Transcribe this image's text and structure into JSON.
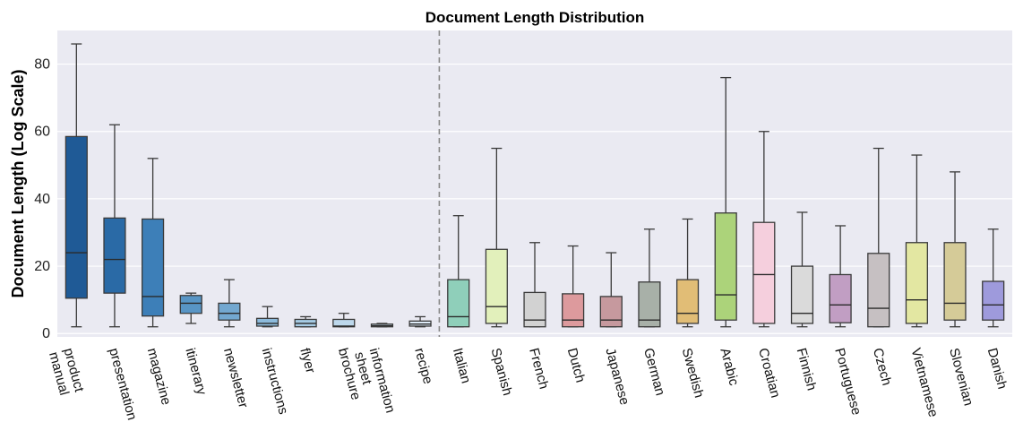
{
  "chart_data": {
    "type": "box",
    "title": "Document Length Distribution",
    "ylabel": "Document Length (Log Scale)",
    "xlabel": "",
    "ylim": [
      -1,
      90
    ],
    "yticks": [
      0,
      20,
      40,
      60,
      80
    ],
    "grid": true,
    "divider_after_index": 9,
    "categories": [
      {
        "label": [
          "product",
          "manual"
        ],
        "color": "#1f5a96",
        "min": 2,
        "q1": 10.5,
        "median": 24,
        "q3": 58.5,
        "max": 86
      },
      {
        "label": [
          "presentation"
        ],
        "color": "#2a6aa6",
        "min": 2,
        "q1": 12,
        "median": 22,
        "q3": 34.3,
        "max": 62
      },
      {
        "label": [
          "magazine"
        ],
        "color": "#3d7fb8",
        "min": 2,
        "q1": 5.2,
        "median": 11,
        "q3": 34,
        "max": 52
      },
      {
        "label": [
          "itinerary"
        ],
        "color": "#5895c5",
        "min": 3,
        "q1": 6,
        "median": 9,
        "q3": 11.3,
        "max": 12
      },
      {
        "label": [
          "newsletter"
        ],
        "color": "#73a8d0",
        "min": 2,
        "q1": 4,
        "median": 6,
        "q3": 9,
        "max": 16
      },
      {
        "label": [
          "instructions"
        ],
        "color": "#8cbadb",
        "min": 2,
        "q1": 2.2,
        "median": 3,
        "q3": 4.5,
        "max": 8
      },
      {
        "label": [
          "flyer"
        ],
        "color": "#a6cbe4",
        "min": 2,
        "q1": 2,
        "median": 3,
        "q3": 4.2,
        "max": 5
      },
      {
        "label": [
          "brochure"
        ],
        "color": "#bdd8ec",
        "min": 2,
        "q1": 2,
        "median": 2.2,
        "q3": 4.2,
        "max": 6
      },
      {
        "label": [
          "information",
          "sheet"
        ],
        "color": "#cfe2f2",
        "min": 2,
        "q1": 2,
        "median": 2.3,
        "q3": 2.8,
        "max": 3
      },
      {
        "label": [
          "recipe"
        ],
        "color": "#deebf7",
        "min": 2,
        "q1": 2.2,
        "median": 2.8,
        "q3": 3.7,
        "max": 5
      },
      {
        "label": [
          "Italian"
        ],
        "color": "#8fcfba",
        "min": 2,
        "q1": 2,
        "median": 5,
        "q3": 16,
        "max": 35
      },
      {
        "label": [
          "Spanish"
        ],
        "color": "#e2f0bb",
        "min": 2,
        "q1": 3,
        "median": 8,
        "q3": 25,
        "max": 55
      },
      {
        "label": [
          "French"
        ],
        "color": "#d2d2d2",
        "min": 2,
        "q1": 2,
        "median": 4,
        "q3": 12.2,
        "max": 27
      },
      {
        "label": [
          "Dutch"
        ],
        "color": "#dd9a9d",
        "min": 2,
        "q1": 2,
        "median": 4,
        "q3": 11.8,
        "max": 26
      },
      {
        "label": [
          "Japanese"
        ],
        "color": "#c6999e",
        "min": 2,
        "q1": 2,
        "median": 4,
        "q3": 11,
        "max": 24
      },
      {
        "label": [
          "German"
        ],
        "color": "#a8b0a8",
        "min": 2,
        "q1": 2,
        "median": 4,
        "q3": 15.3,
        "max": 31
      },
      {
        "label": [
          "Swedish"
        ],
        "color": "#e1bd76",
        "min": 2,
        "q1": 3,
        "median": 6,
        "q3": 16,
        "max": 34
      },
      {
        "label": [
          "Arabic"
        ],
        "color": "#acd37a",
        "min": 2,
        "q1": 4,
        "median": 11.5,
        "q3": 35.8,
        "max": 76
      },
      {
        "label": [
          "Croatian"
        ],
        "color": "#f5cfdd",
        "min": 2,
        "q1": 3,
        "median": 17.5,
        "q3": 33,
        "max": 60
      },
      {
        "label": [
          "Finnish"
        ],
        "color": "#dadada",
        "min": 2,
        "q1": 3,
        "median": 6,
        "q3": 20,
        "max": 36
      },
      {
        "label": [
          "Portuguese"
        ],
        "color": "#c19ec3",
        "min": 2,
        "q1": 3.2,
        "median": 8.5,
        "q3": 17.5,
        "max": 32
      },
      {
        "label": [
          "Czech"
        ],
        "color": "#c6c0c2",
        "min": 2,
        "q1": 2,
        "median": 7.5,
        "q3": 23.8,
        "max": 55
      },
      {
        "label": [
          "Vietnamese"
        ],
        "color": "#e3e7a2",
        "min": 2,
        "q1": 3,
        "median": 10,
        "q3": 27,
        "max": 53
      },
      {
        "label": [
          "Slovenian"
        ],
        "color": "#d5cb98",
        "min": 2,
        "q1": 4,
        "median": 9,
        "q3": 27,
        "max": 48
      },
      {
        "label": [
          "Danish"
        ],
        "color": "#9e9adc",
        "min": 2,
        "q1": 4,
        "median": 8.5,
        "q3": 15.5,
        "max": 31
      }
    ]
  }
}
